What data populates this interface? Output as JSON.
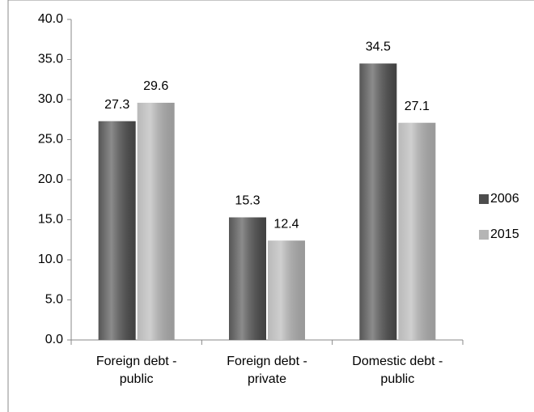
{
  "chart_data": {
    "type": "bar",
    "categories": [
      "Foreign debt - public",
      "Foreign debt - private",
      "Domestic debt - public"
    ],
    "series": [
      {
        "name": "2006",
        "color": "#4d4d4d",
        "values": [
          27.3,
          15.3,
          34.5
        ]
      },
      {
        "name": "2015",
        "color": "#b5b5b5",
        "values": [
          29.6,
          12.4,
          27.1
        ]
      }
    ],
    "ylim": [
      0,
      40
    ],
    "yticks": [
      {
        "value": 0,
        "label": "0.0"
      },
      {
        "value": 5,
        "label": "5.0"
      },
      {
        "value": 10,
        "label": "10.0"
      },
      {
        "value": 15,
        "label": "15.0"
      },
      {
        "value": 20,
        "label": "20.0"
      },
      {
        "value": 25,
        "label": "25.0"
      },
      {
        "value": 30,
        "label": "30.0"
      },
      {
        "value": 35,
        "label": "35.0"
      },
      {
        "value": 40,
        "label": "40.0"
      }
    ],
    "grid": false,
    "legend": "right"
  }
}
